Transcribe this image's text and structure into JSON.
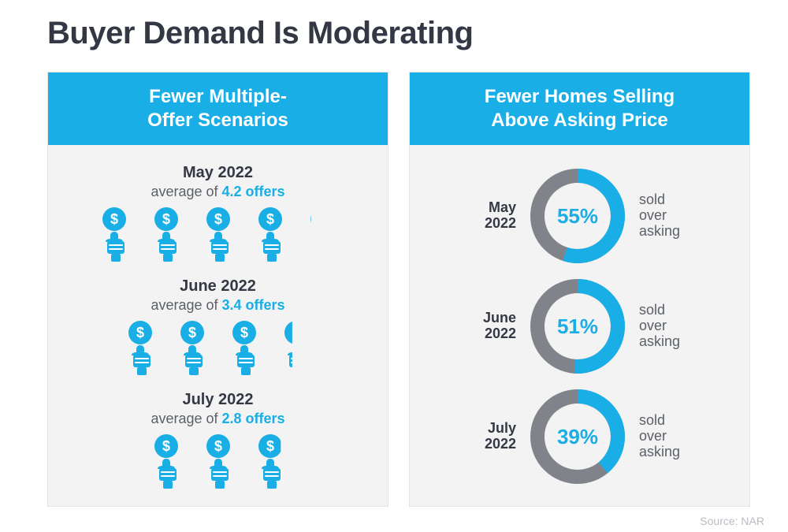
{
  "colors": {
    "title": "#333844",
    "accent": "#19aee5",
    "panel_bg": "#f3f3f3",
    "body_text": "#333844",
    "sub_text": "#5b5f68",
    "donut_remainder": "#808389",
    "white": "#ffffff",
    "footer_text": "#b8bcc2"
  },
  "typography": {
    "title_fontsize": 40,
    "panel_header_fontsize": 24,
    "month_fontsize": 20,
    "body_fontsize": 18,
    "pct_fontsize": 26,
    "footer_fontsize": 14
  },
  "title": "Buyer Demand Is Moderating",
  "left_panel": {
    "header_line1": "Fewer Multiple-",
    "header_line2": "Offer Scenarios",
    "avg_prefix": "average of ",
    "offers_suffix": " offers",
    "icon_stroke_width": 0,
    "icon_gap": 20,
    "months": [
      {
        "label": "May 2022",
        "value": "4.2",
        "icons": 4.2
      },
      {
        "label": "June 2022",
        "value": "3.4",
        "icons": 3.4
      },
      {
        "label": "July 2022",
        "value": "2.8",
        "icons": 2.8
      }
    ]
  },
  "right_panel": {
    "header_line1": "Fewer Homes Selling",
    "header_line2": "Above Asking Price",
    "donut": {
      "diameter": 120,
      "stroke": 18,
      "start_angle": -90
    },
    "label_line1": "sold",
    "label_line2": "over",
    "label_line3": "asking",
    "months": [
      {
        "label_line1": "May",
        "label_line2": "2022",
        "pct": 55
      },
      {
        "label_line1": "June",
        "label_line2": "2022",
        "pct": 51
      },
      {
        "label_line1": "July",
        "label_line2": "2022",
        "pct": 39
      }
    ]
  },
  "footer": {
    "left": "",
    "right": "Source: NAR"
  }
}
